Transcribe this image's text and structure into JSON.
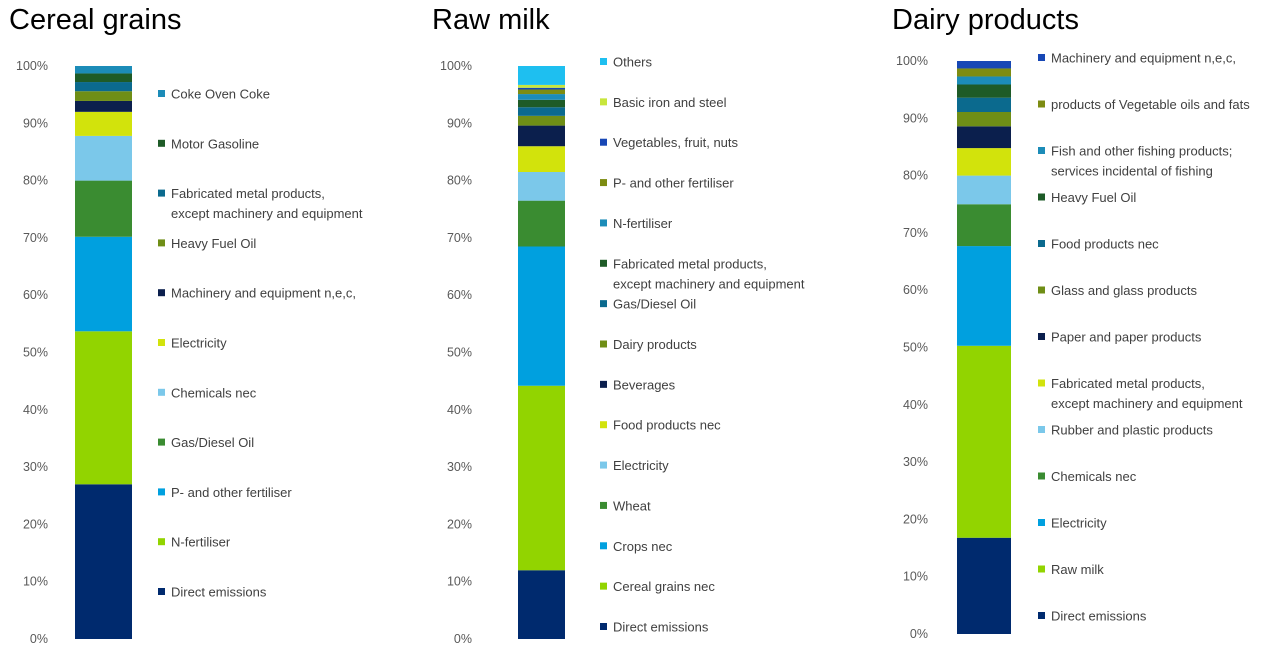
{
  "charts": [
    {
      "title": "Cereal grains",
      "chart_data": {
        "type": "bar",
        "stacked": true,
        "percent": true,
        "ylim": [
          0,
          100
        ],
        "yticks": [
          "0%",
          "10%",
          "20%",
          "30%",
          "40%",
          "50%",
          "60%",
          "70%",
          "80%",
          "90%",
          "100%"
        ],
        "series": [
          {
            "name": "Direct emissions",
            "value": 27.0,
            "color": "#002A6E"
          },
          {
            "name": "N-fertiliser",
            "value": 26.7,
            "color": "#92D400"
          },
          {
            "name": "P- and other fertiliser",
            "value": 16.5,
            "color": "#00A0DF"
          },
          {
            "name": "Gas/Diesel Oil",
            "value": 9.8,
            "color": "#3A8C31"
          },
          {
            "name": "Chemicals nec",
            "value": 7.8,
            "color": "#7BC8EA"
          },
          {
            "name": "Electricity",
            "value": 4.2,
            "color": "#D2E30C"
          },
          {
            "name": "Machinery and equipment n,e,c,",
            "value": 1.9,
            "color": "#0B1F4D"
          },
          {
            "name": "Heavy Fuel Oil",
            "value": 1.7,
            "color": "#6F8E16"
          },
          {
            "name": "Fabricated metal products, except machinery and equipment",
            "value": 1.6,
            "color": "#0B6A8E"
          },
          {
            "name": "Motor Gasoline",
            "value": 1.5,
            "color": "#1E5B27"
          },
          {
            "name": "Coke Oven Coke",
            "value": 1.3,
            "color": "#1C8CB8"
          }
        ]
      }
    },
    {
      "title": "Raw milk",
      "chart_data": {
        "type": "bar",
        "stacked": true,
        "percent": true,
        "ylim": [
          0,
          100
        ],
        "yticks": [
          "0%",
          "10%",
          "20%",
          "30%",
          "40%",
          "50%",
          "60%",
          "70%",
          "80%",
          "90%",
          "100%"
        ],
        "series": [
          {
            "name": "Direct emissions",
            "value": 12.0,
            "color": "#002A6E"
          },
          {
            "name": "Cereal grains nec",
            "value": 32.2,
            "color": "#92D400"
          },
          {
            "name": "Crops nec",
            "value": 24.3,
            "color": "#00A0DF"
          },
          {
            "name": "Wheat",
            "value": 8.0,
            "color": "#3A8C31"
          },
          {
            "name": "Electricity",
            "value": 5.0,
            "color": "#7BC8EA"
          },
          {
            "name": "Food products nec",
            "value": 4.5,
            "color": "#D2E30C"
          },
          {
            "name": "Beverages",
            "value": 3.6,
            "color": "#0B1F4D"
          },
          {
            "name": "Dairy products",
            "value": 1.7,
            "color": "#6F8E16"
          },
          {
            "name": "Gas/Diesel Oil",
            "value": 1.5,
            "color": "#0B6A8E"
          },
          {
            "name": "Fabricated metal products, except machinery and equipment",
            "value": 1.3,
            "color": "#1E5B27"
          },
          {
            "name": "N-fertiliser",
            "value": 1.0,
            "color": "#1C8CB8"
          },
          {
            "name": "P- and other fertiliser",
            "value": 0.8,
            "color": "#7D8C12"
          },
          {
            "name": "Vegetables, fruit, nuts",
            "value": 0.3,
            "color": "#1747B5"
          },
          {
            "name": "Basic iron and steel",
            "value": 0.5,
            "color": "#C8E63C"
          },
          {
            "name": "Others",
            "value": 3.3,
            "color": "#1EBFF0"
          }
        ]
      }
    },
    {
      "title": "Dairy products",
      "chart_data": {
        "type": "bar",
        "stacked": true,
        "percent": true,
        "ylim": [
          0,
          100
        ],
        "yticks": [
          "0%",
          "10%",
          "20%",
          "30%",
          "40%",
          "50%",
          "60%",
          "70%",
          "80%",
          "90%",
          "100%"
        ],
        "series": [
          {
            "name": "Direct emissions",
            "value": 16.8,
            "color": "#002A6E"
          },
          {
            "name": "Raw milk",
            "value": 33.5,
            "color": "#92D400"
          },
          {
            "name": "Electricity",
            "value": 17.4,
            "color": "#00A0DF"
          },
          {
            "name": "Chemicals nec",
            "value": 7.3,
            "color": "#3A8C31"
          },
          {
            "name": "Rubber and plastic products",
            "value": 5.0,
            "color": "#7BC8EA"
          },
          {
            "name": "Fabricated metal products, except machinery and equipment",
            "value": 4.8,
            "color": "#D2E30C"
          },
          {
            "name": "Paper and paper products",
            "value": 3.8,
            "color": "#0B1F4D"
          },
          {
            "name": "Glass and glass products",
            "value": 2.5,
            "color": "#6F8E16"
          },
          {
            "name": "Food products nec",
            "value": 2.5,
            "color": "#0B6A8E"
          },
          {
            "name": "Heavy Fuel Oil",
            "value": 2.3,
            "color": "#1E5B27"
          },
          {
            "name": "Fish and other fishing products; services incidental of fishing",
            "value": 1.4,
            "color": "#1C8CB8"
          },
          {
            "name": "products of Vegetable oils and fats",
            "value": 1.4,
            "color": "#7D8C12"
          },
          {
            "name": "Machinery and equipment n,e,c,",
            "value": 1.3,
            "color": "#1747B5"
          }
        ]
      }
    }
  ]
}
